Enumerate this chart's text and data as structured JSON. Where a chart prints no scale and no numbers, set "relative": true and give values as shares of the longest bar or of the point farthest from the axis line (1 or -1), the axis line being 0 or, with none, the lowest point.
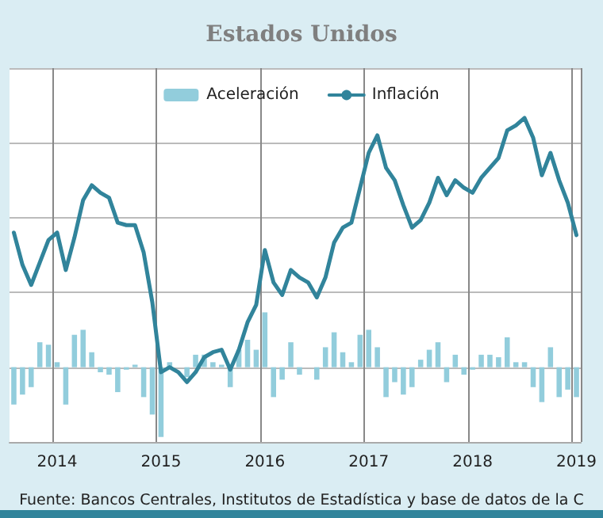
{
  "chart_data": {
    "type": "bar",
    "title": "Estados Unidos",
    "relative": true,
    "grid": true,
    "legend": "top",
    "annotations": [
      "Fuente: Bancos Centrales, Institutos de Estadística y base de datos de la C"
    ],
    "categories": [
      null,
      null,
      null,
      null,
      null,
      "2014",
      null,
      null,
      null,
      null,
      null,
      null,
      null,
      null,
      null,
      null,
      null,
      "2015",
      null,
      null,
      null,
      null,
      null,
      null,
      null,
      null,
      null,
      null,
      null,
      "2016",
      null,
      null,
      null,
      null,
      null,
      null,
      null,
      null,
      null,
      null,
      null,
      "2017",
      null,
      null,
      null,
      null,
      null,
      null,
      null,
      null,
      null,
      null,
      null,
      "2018",
      null,
      null,
      null,
      null,
      null,
      null,
      null,
      null,
      null,
      null,
      null,
      "2019"
    ],
    "series": [
      {
        "name": "Aceleración",
        "color": "#92cddc",
        "values": [
          -0.15,
          -0.11,
          -0.08,
          0.1,
          0.09,
          0.02,
          -0.15,
          0.13,
          0.15,
          0.06,
          -0.02,
          -0.03,
          -0.1,
          -0.01,
          0.01,
          -0.12,
          -0.19,
          -0.28,
          0.02,
          0,
          -0.04,
          0.05,
          0.05,
          0.02,
          0.01,
          -0.08,
          0.07,
          0.11,
          0.07,
          0.22,
          -0.12,
          -0.05,
          0.1,
          -0.03,
          0,
          -0.05,
          0.08,
          0.14,
          0.06,
          0.02,
          0.13,
          0.15,
          0.08,
          -0.12,
          -0.06,
          -0.11,
          -0.08,
          0.03,
          0.07,
          0.1,
          -0.06,
          0.05,
          -0.03,
          -0.01,
          0.05,
          0.05,
          0.04,
          0.12,
          0.02,
          0.02,
          -0.08,
          -0.14,
          0.08,
          -0.12,
          -0.09,
          -0.12
        ]
      },
      {
        "name": "Inflación",
        "type": "line",
        "color": "#31849b",
        "values": [
          0.54,
          0.41,
          0.33,
          0.42,
          0.51,
          0.54,
          0.39,
          0.52,
          0.67,
          0.73,
          0.7,
          0.68,
          0.58,
          0.57,
          0.57,
          0.46,
          0.26,
          -0.02,
          0,
          -0.02,
          -0.06,
          -0.02,
          0.04,
          0.06,
          0.07,
          -0.01,
          0.07,
          0.18,
          0.25,
          0.47,
          0.34,
          0.29,
          0.39,
          0.36,
          0.34,
          0.28,
          0.36,
          0.5,
          0.56,
          0.58,
          0.72,
          0.86,
          0.93,
          0.8,
          0.75,
          0.65,
          0.56,
          0.59,
          0.66,
          0.76,
          0.69,
          0.75,
          0.72,
          0.7,
          0.76,
          0.8,
          0.84,
          0.95,
          0.97,
          1.0,
          0.92,
          0.77,
          0.86,
          0.75,
          0.66,
          0.53
        ]
      }
    ]
  }
}
